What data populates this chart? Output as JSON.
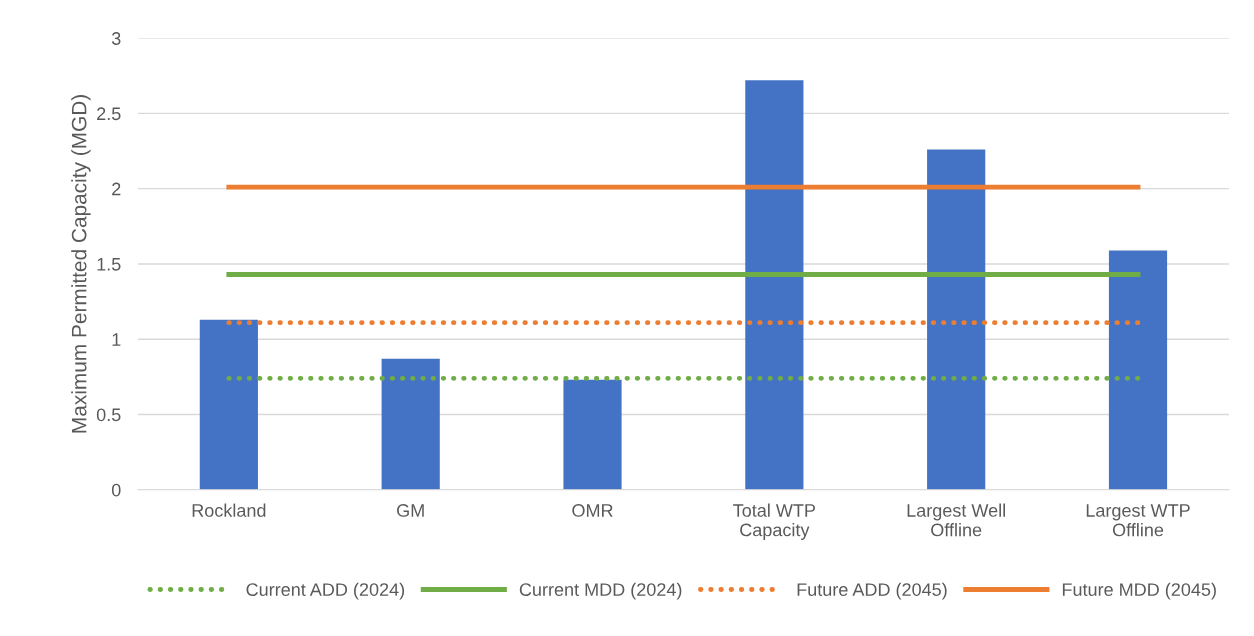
{
  "chart_data": {
    "type": "bar",
    "ylabel": "Maximum Permitted Capacity (MGD)",
    "categories": [
      "Rockland",
      "GM",
      "OMR",
      "Total WTP\nCapacity",
      "Largest Well\nOffline",
      "Largest WTP\nOffline"
    ],
    "series": [
      {
        "color": "#4472c4",
        "values": [
          1.13,
          0.87,
          0.73,
          2.72,
          2.26,
          1.59
        ]
      },
      {
        "type": "line",
        "name": "Current ADD (2024)",
        "color": "#70ad47",
        "line_style": "dotted",
        "values": [
          0.74,
          0.74,
          0.74,
          0.74,
          0.74,
          0.74
        ]
      },
      {
        "type": "line",
        "name": "Current MDD (2024)",
        "color": "#70ad47",
        "line_style": "solid",
        "values": [
          1.43,
          1.43,
          1.43,
          1.43,
          1.43,
          1.43
        ]
      },
      {
        "type": "line",
        "name": "Future ADD (2045)",
        "color": "#ed7d31",
        "line_style": "dotted",
        "values": [
          1.11,
          1.11,
          1.11,
          1.11,
          1.11,
          1.11
        ]
      },
      {
        "type": "line",
        "name": "Future MDD (2045)",
        "color": "#ed7d31",
        "line_style": "solid",
        "values": [
          2.01,
          2.01,
          2.01,
          2.01,
          2.01,
          2.01
        ]
      }
    ],
    "ylim": [
      0,
      3
    ],
    "yticks": [
      0,
      {
        "value": 0.5,
        "label": "0.5"
      },
      1,
      {
        "value": 1.5,
        "label": "1.5"
      },
      2,
      {
        "value": 2.5,
        "label": "2.5"
      },
      3
    ],
    "grid": "y",
    "legend": "bottom"
  }
}
